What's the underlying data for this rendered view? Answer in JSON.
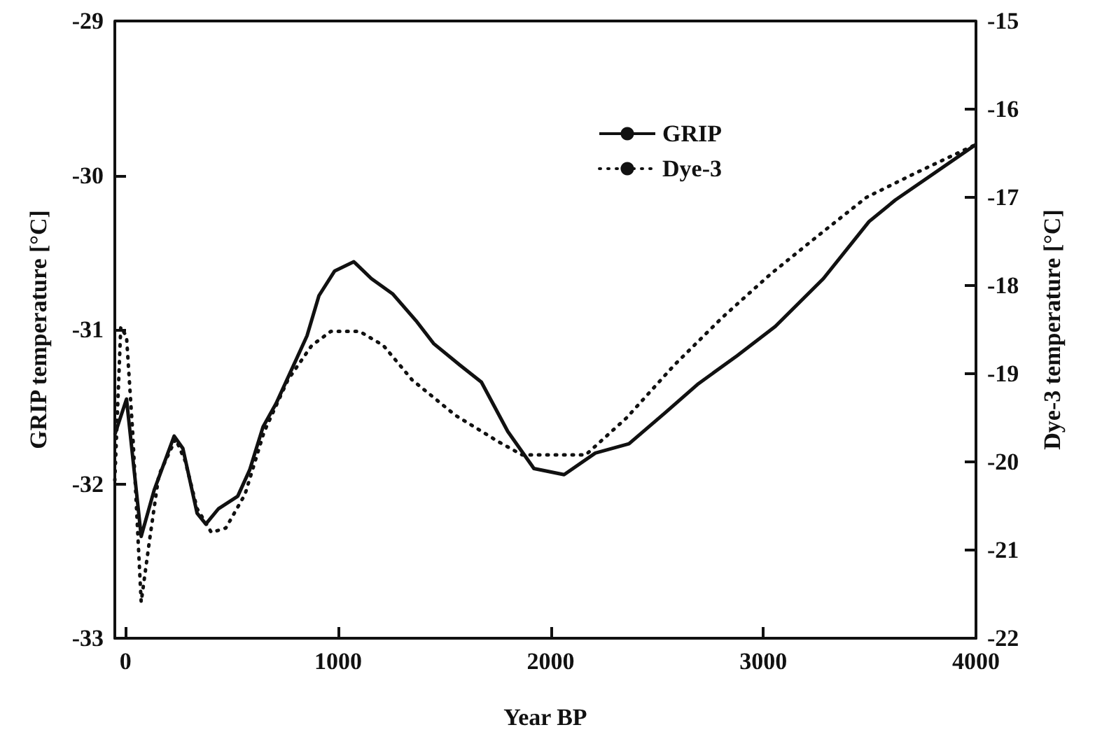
{
  "chart_data": {
    "type": "line",
    "xlabel": "Year BP",
    "ylabel": "GRIP temperature [°C]",
    "y2label": "Dye-3 temperature [°C]",
    "xlim": [
      -50,
      4000
    ],
    "xticks": [
      0,
      1000,
      2000,
      3000,
      4000
    ],
    "ylim": [
      -33,
      -29
    ],
    "yticks": [
      -33,
      -32,
      -31,
      -30,
      -29
    ],
    "y2lim": [
      -22,
      -15
    ],
    "y2ticks": [
      -22,
      -21,
      -20,
      -19,
      -18,
      -17,
      -16,
      -15
    ],
    "grid": false,
    "legend": "top right",
    "marker": "none",
    "series": [
      {
        "name": "GRIP",
        "color": "#111111",
        "line_style": "solid",
        "x": [
          -50,
          5,
          74,
          135,
          229,
          270,
          337,
          378,
          438,
          528,
          584,
          647,
          708,
          854,
          910,
          984,
          1074,
          1157,
          1258,
          1371,
          1449,
          1573,
          1674,
          1798,
          1921,
          2063,
          2210,
          2368,
          2537,
          2695,
          2876,
          3056,
          3282,
          3497,
          3621,
          4000
        ],
        "values": [
          -31.68,
          -31.45,
          -32.34,
          -32.04,
          -31.69,
          -31.77,
          -32.19,
          -32.26,
          -32.16,
          -32.08,
          -31.91,
          -31.63,
          -31.48,
          -31.04,
          -30.78,
          -30.62,
          -30.56,
          -30.67,
          -30.77,
          -30.95,
          -31.09,
          -31.23,
          -31.34,
          -31.66,
          -31.9,
          -31.94,
          -31.8,
          -31.74,
          -31.54,
          -31.35,
          -31.17,
          -30.98,
          -30.67,
          -30.3,
          -30.16,
          -29.8
        ]
      },
      {
        "name": "Dye-3",
        "color": "#111111",
        "line_style": "dotted",
        "axis": "y2",
        "x": [
          -50,
          -22,
          5,
          34,
          74,
          112,
          157,
          236,
          281,
          337,
          404,
          472,
          562,
          652,
          764,
          876,
          966,
          1101,
          1213,
          1348,
          1551,
          1753,
          1865,
          2034,
          2165,
          2357,
          2582,
          2808,
          3034,
          3260,
          3485,
          3711,
          4000
        ],
        "values": [
          -20.21,
          -18.47,
          -18.58,
          -19.66,
          -21.59,
          -20.91,
          -20.15,
          -19.74,
          -19.99,
          -20.53,
          -20.8,
          -20.75,
          -20.37,
          -19.66,
          -19.07,
          -18.68,
          -18.52,
          -18.52,
          -18.68,
          -19.07,
          -19.47,
          -19.77,
          -19.92,
          -19.92,
          -19.92,
          -19.5,
          -18.9,
          -18.36,
          -17.87,
          -17.43,
          -17.0,
          -16.73,
          -16.4
        ]
      }
    ]
  }
}
